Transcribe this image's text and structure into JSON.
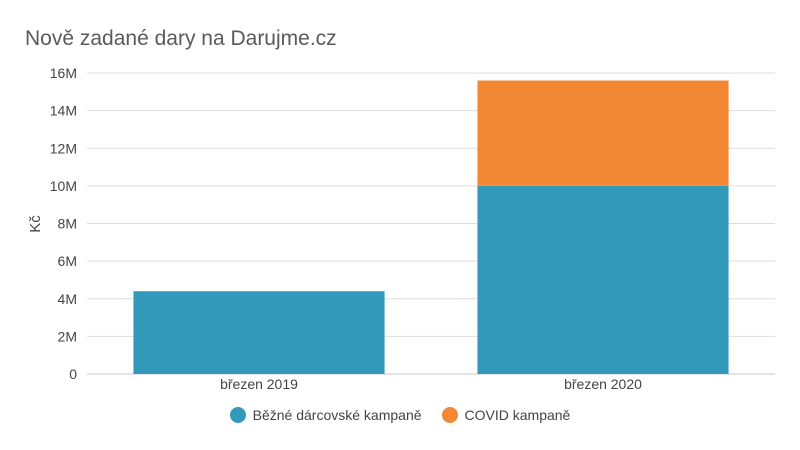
{
  "chart_data": {
    "type": "bar",
    "stacked": true,
    "title": "Nově zadané dary na Darujme.cz",
    "xlabel": "",
    "ylabel": "Kč",
    "categories": [
      "březen 2019",
      "březen 2020"
    ],
    "series": [
      {
        "name": "Běžné dárcovské kampaně",
        "color": "#3399bb",
        "values": [
          4400000,
          10000000
        ]
      },
      {
        "name": "COVID kampaně",
        "color": "#f28833",
        "values": [
          0,
          5600000
        ]
      }
    ],
    "ylim": [
      0,
      16000000
    ],
    "yticks": [
      0,
      2000000,
      4000000,
      6000000,
      8000000,
      10000000,
      12000000,
      14000000,
      16000000
    ],
    "ytick_labels": [
      "0",
      "2M",
      "4M",
      "6M",
      "8M",
      "10M",
      "12M",
      "14M",
      "16M"
    ],
    "grid": true,
    "legend_position": "bottom-center"
  }
}
